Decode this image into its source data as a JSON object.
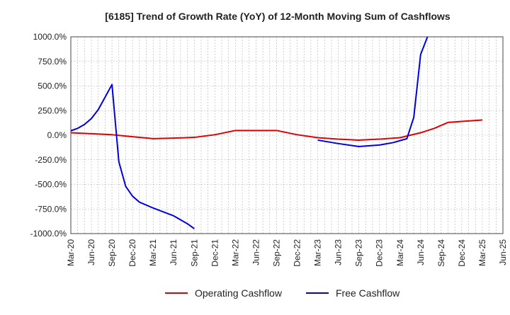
{
  "chart_data": {
    "type": "line",
    "title": "[6185]  Trend of Growth Rate (YoY) of 12-Month Moving Sum of Cashflows",
    "xlabel": "",
    "ylabel": "",
    "ylim": [
      -1000,
      1000
    ],
    "y_ticks": [
      -1000,
      -750,
      -500,
      -250,
      0,
      250,
      500,
      750,
      1000
    ],
    "y_tick_labels": [
      "-1000.0%",
      "-750.0%",
      "-500.0%",
      "-250.0%",
      "0.0%",
      "250.0%",
      "500.0%",
      "750.0%",
      "1000.0%"
    ],
    "x_tick_labels": [
      "Mar-20",
      "Jun-20",
      "Sep-20",
      "Dec-20",
      "Mar-21",
      "Jun-21",
      "Sep-21",
      "Dec-21",
      "Mar-22",
      "Jun-22",
      "Sep-22",
      "Dec-22",
      "Mar-23",
      "Jun-23",
      "Sep-23",
      "Dec-23",
      "Mar-24",
      "Jun-24",
      "Sep-24",
      "Dec-24",
      "Mar-25",
      "Jun-25"
    ],
    "grid": true,
    "legend_position": "bottom",
    "series": [
      {
        "name": "Operating Cashflow",
        "color": "#e00000",
        "points": [
          [
            "Mar-20",
            25
          ],
          [
            "Jun-20",
            15
          ],
          [
            "Sep-20",
            5
          ],
          [
            "Dec-20",
            -15
          ],
          [
            "Mar-21",
            -35
          ],
          [
            "Jun-21",
            -30
          ],
          [
            "Sep-21",
            -22
          ],
          [
            "Dec-21",
            5
          ],
          [
            "Mar-22",
            48
          ],
          [
            "Jun-22",
            48
          ],
          [
            "Sep-22",
            48
          ],
          [
            "Dec-22",
            5
          ],
          [
            "Mar-23",
            -25
          ],
          [
            "Jun-23",
            -40
          ],
          [
            "Sep-23",
            -50
          ],
          [
            "Dec-23",
            -40
          ],
          [
            "Mar-24",
            -25
          ],
          [
            "Jun-24",
            25
          ],
          [
            "Aug-24",
            70
          ],
          [
            "Oct-24",
            130
          ],
          [
            "Dec-24",
            140
          ],
          [
            "Mar-25",
            155
          ]
        ]
      },
      {
        "name": "Free Cashflow",
        "color": "#0000e0",
        "points": [
          [
            "Mar-20",
            45
          ],
          [
            "Apr-20",
            70
          ],
          [
            "May-20",
            110
          ],
          [
            "Jun-20",
            170
          ],
          [
            "Jul-20",
            260
          ],
          [
            "Sep-20",
            515
          ],
          [
            "Oct-20",
            -270
          ],
          [
            "Nov-20",
            -520
          ],
          [
            "Dec-20",
            -620
          ],
          [
            "Jan-21",
            -680
          ],
          [
            "Mar-21",
            -740
          ],
          [
            "Jun-21",
            -820
          ],
          [
            "Aug-21",
            -900
          ],
          [
            "Sep-21",
            -950
          ],
          [
            "Mar-23",
            -50
          ],
          [
            "Jun-23",
            -85
          ],
          [
            "Sep-23",
            -115
          ],
          [
            "Dec-23",
            -100
          ],
          [
            "Feb-24",
            -75
          ],
          [
            "Apr-24",
            -35
          ],
          [
            "May-24",
            180
          ],
          [
            "Jun-24",
            820
          ],
          [
            "Jul-24",
            1000
          ]
        ]
      }
    ]
  }
}
